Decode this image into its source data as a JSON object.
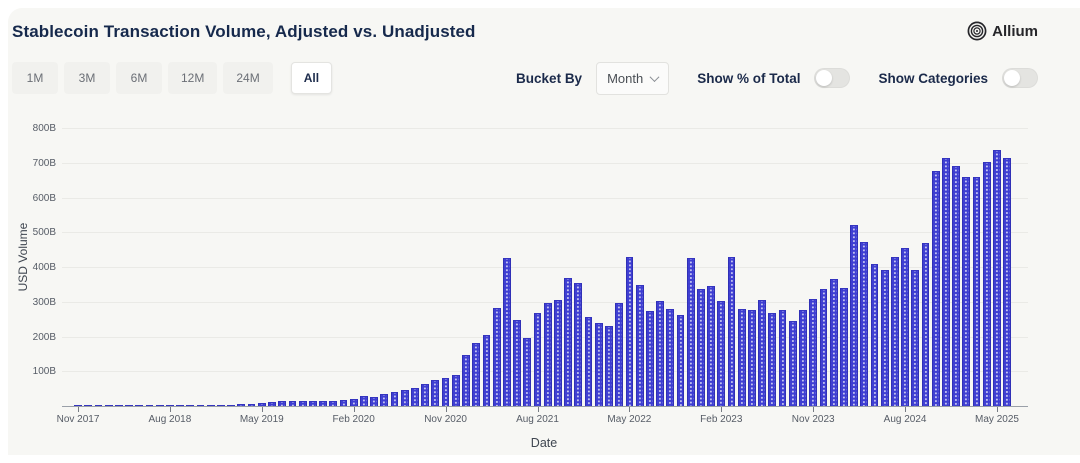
{
  "header": {
    "title": "Stablecoin Transaction Volume, Adjusted vs. Unadjusted",
    "logo_text": "Allium"
  },
  "toolbar": {
    "ranges": [
      {
        "label": "1M",
        "selected": false
      },
      {
        "label": "3M",
        "selected": false
      },
      {
        "label": "6M",
        "selected": false
      },
      {
        "label": "12M",
        "selected": false
      },
      {
        "label": "24M",
        "selected": false
      },
      {
        "label": "All",
        "selected": true
      }
    ],
    "bucket_by_label": "Bucket By",
    "bucket_value": "Month",
    "show_pct_label": "Show % of Total",
    "show_pct_on": false,
    "show_categories_label": "Show Categories",
    "show_categories_on": false
  },
  "colors": {
    "bar": "#3e3ed2",
    "bar_dot": "#c7c7f1",
    "title_navy": "#16294c",
    "panel_bg": "#f7f7f4"
  },
  "chart_data": {
    "type": "bar",
    "title": "Stablecoin Transaction Volume, Adjusted vs. Unadjusted",
    "xlabel": "Date",
    "ylabel": "USD Volume",
    "ylim": [
      0,
      800
    ],
    "y_tick_labels": [
      "100B",
      "200B",
      "300B",
      "400B",
      "500B",
      "600B",
      "700B",
      "800B"
    ],
    "x_axis_tick_labels": [
      "Nov 2017",
      "Aug 2018",
      "May 2019",
      "Feb 2020",
      "Nov 2020",
      "Aug 2021",
      "May 2022",
      "Feb 2023",
      "Nov 2023",
      "Aug 2024",
      "May 2025"
    ],
    "grid": "horizontal",
    "legend": "none",
    "unit": "billions USD",
    "categories": [
      "Nov 2017",
      "Dec 2017",
      "Jan 2018",
      "Feb 2018",
      "Mar 2018",
      "Apr 2018",
      "May 2018",
      "Jun 2018",
      "Jul 2018",
      "Aug 2018",
      "Sep 2018",
      "Oct 2018",
      "Nov 2018",
      "Dec 2018",
      "Jan 2019",
      "Feb 2019",
      "Mar 2019",
      "Apr 2019",
      "May 2019",
      "Jun 2019",
      "Jul 2019",
      "Aug 2019",
      "Sep 2019",
      "Oct 2019",
      "Nov 2019",
      "Dec 2019",
      "Jan 2020",
      "Feb 2020",
      "Mar 2020",
      "Apr 2020",
      "May 2020",
      "Jun 2020",
      "Jul 2020",
      "Aug 2020",
      "Sep 2020",
      "Oct 2020",
      "Nov 2020",
      "Dec 2020",
      "Jan 2021",
      "Feb 2021",
      "Mar 2021",
      "Apr 2021",
      "May 2021",
      "Jun 2021",
      "Jul 2021",
      "Aug 2021",
      "Sep 2021",
      "Oct 2021",
      "Nov 2021",
      "Dec 2021",
      "Jan 2022",
      "Feb 2022",
      "Mar 2022",
      "Apr 2022",
      "May 2022",
      "Jun 2022",
      "Jul 2022",
      "Aug 2022",
      "Sep 2022",
      "Oct 2022",
      "Nov 2022",
      "Dec 2022",
      "Jan 2023",
      "Feb 2023",
      "Mar 2023",
      "Apr 2023",
      "May 2023",
      "Jun 2023",
      "Jul 2023",
      "Aug 2023",
      "Sep 2023",
      "Oct 2023",
      "Nov 2023",
      "Dec 2023",
      "Jan 2024",
      "Feb 2024",
      "Mar 2024",
      "Apr 2024",
      "May 2024",
      "Jun 2024",
      "Jul 2024",
      "Aug 2024",
      "Sep 2024",
      "Oct 2024",
      "Nov 2024",
      "Dec 2024",
      "Jan 2025",
      "Feb 2025",
      "Mar 2025",
      "Apr 2025",
      "May 2025",
      "Jun 2025"
    ],
    "values": [
      1,
      2,
      2,
      2,
      2,
      2,
      2,
      2,
      2,
      2,
      2,
      3,
      3,
      3,
      3,
      4,
      5,
      7,
      9,
      12,
      13,
      13,
      14,
      14,
      14,
      15,
      17,
      21,
      29,
      27,
      34,
      39,
      47,
      52,
      64,
      75,
      80,
      88,
      148,
      181,
      205,
      282,
      425,
      248,
      197,
      267,
      296,
      306,
      368,
      353,
      255,
      240,
      229,
      296,
      430,
      348,
      272,
      302,
      280,
      262,
      425,
      337,
      346,
      301,
      430,
      280,
      277,
      306,
      267,
      277,
      245,
      277,
      308,
      337,
      365,
      341,
      521,
      473,
      408,
      392,
      430,
      456,
      392,
      470,
      676,
      713,
      690,
      660,
      660,
      703,
      737,
      714
    ]
  }
}
